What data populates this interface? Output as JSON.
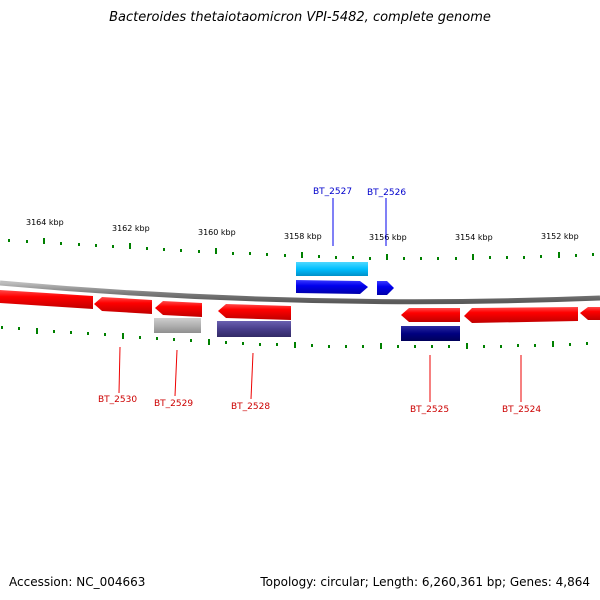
{
  "title": "Bacteroides thetaiotaomicron VPI-5482, complete genome",
  "footer": {
    "accession": "Accession: NC_004663",
    "summary": "Topology: circular; Length: 6,260,361 bp; Genes: 4,864"
  },
  "colors": {
    "forward_gene": "#0000ee",
    "forward_gene_light": "#00bfff",
    "reverse_gene": "#ff0000",
    "reverse_gene_dark": "#000080",
    "reverse_gene_gray": "#b0b0b0",
    "reverse_gene_slate": "#483d8b",
    "backbone": "#808080",
    "ticks": "#008000"
  },
  "scale_labels": [
    "3164 kbp",
    "3162 kbp",
    "3160 kbp",
    "3158 kbp",
    "3156 kbp",
    "3154 kbp",
    "3152 kbp"
  ],
  "genes": {
    "forward": [
      "BT_2527",
      "BT_2526"
    ],
    "reverse": [
      "BT_2530",
      "BT_2529",
      "BT_2528",
      "BT_2525",
      "BT_2524"
    ]
  }
}
